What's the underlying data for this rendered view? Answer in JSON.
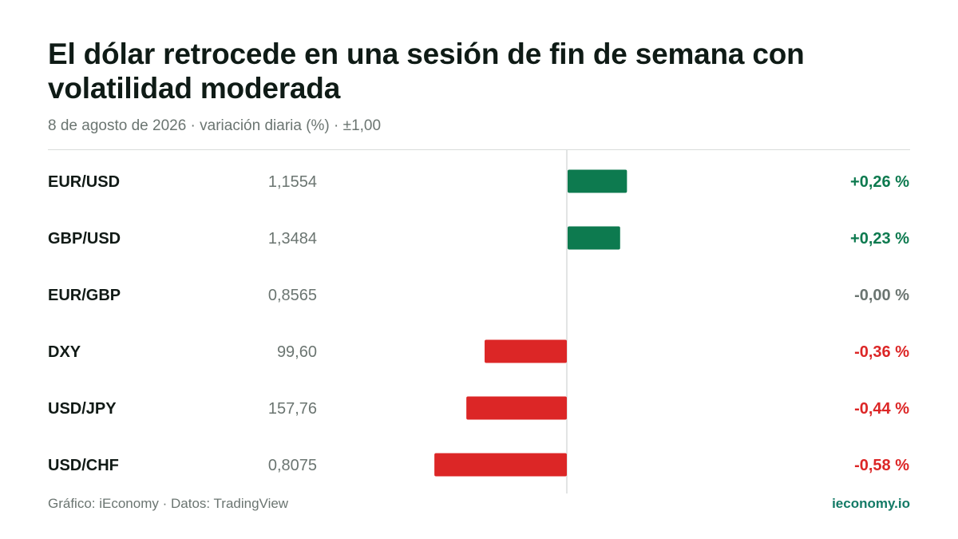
{
  "title": "El dólar retrocede en una sesión de fin de semana con volatilidad moderada",
  "subtitle": "8 de agosto de 2026 · variación diaria (%) · ±1,00",
  "footer": {
    "source": "Gráfico: iEconomy · Datos: TradingView",
    "brand": "ieconomy.io"
  },
  "colors": {
    "positive": "#0d7a4f",
    "negative": "#dc2626",
    "neutral": "#6b7571",
    "label": "#111a16",
    "price": "#6b7571",
    "axis": "#d9dcdb"
  },
  "chart_data": {
    "type": "bar",
    "orientation": "horizontal",
    "xlim": [
      -1,
      1
    ],
    "unit": "%",
    "rows": [
      {
        "label": "EUR/USD",
        "price": "1,1554",
        "value": 0.26,
        "value_label": "+0,26 %"
      },
      {
        "label": "GBP/USD",
        "price": "1,3484",
        "value": 0.23,
        "value_label": "+0,23 %"
      },
      {
        "label": "EUR/GBP",
        "price": "0,8565",
        "value": 0.0,
        "value_label": "-0,00 %"
      },
      {
        "label": "DXY",
        "price": "99,60",
        "value": -0.36,
        "value_label": "-0,36 %"
      },
      {
        "label": "USD/JPY",
        "price": "157,76",
        "value": -0.44,
        "value_label": "-0,44 %"
      },
      {
        "label": "USD/CHF",
        "price": "0,8075",
        "value": -0.58,
        "value_label": "-0,58 %"
      }
    ]
  }
}
